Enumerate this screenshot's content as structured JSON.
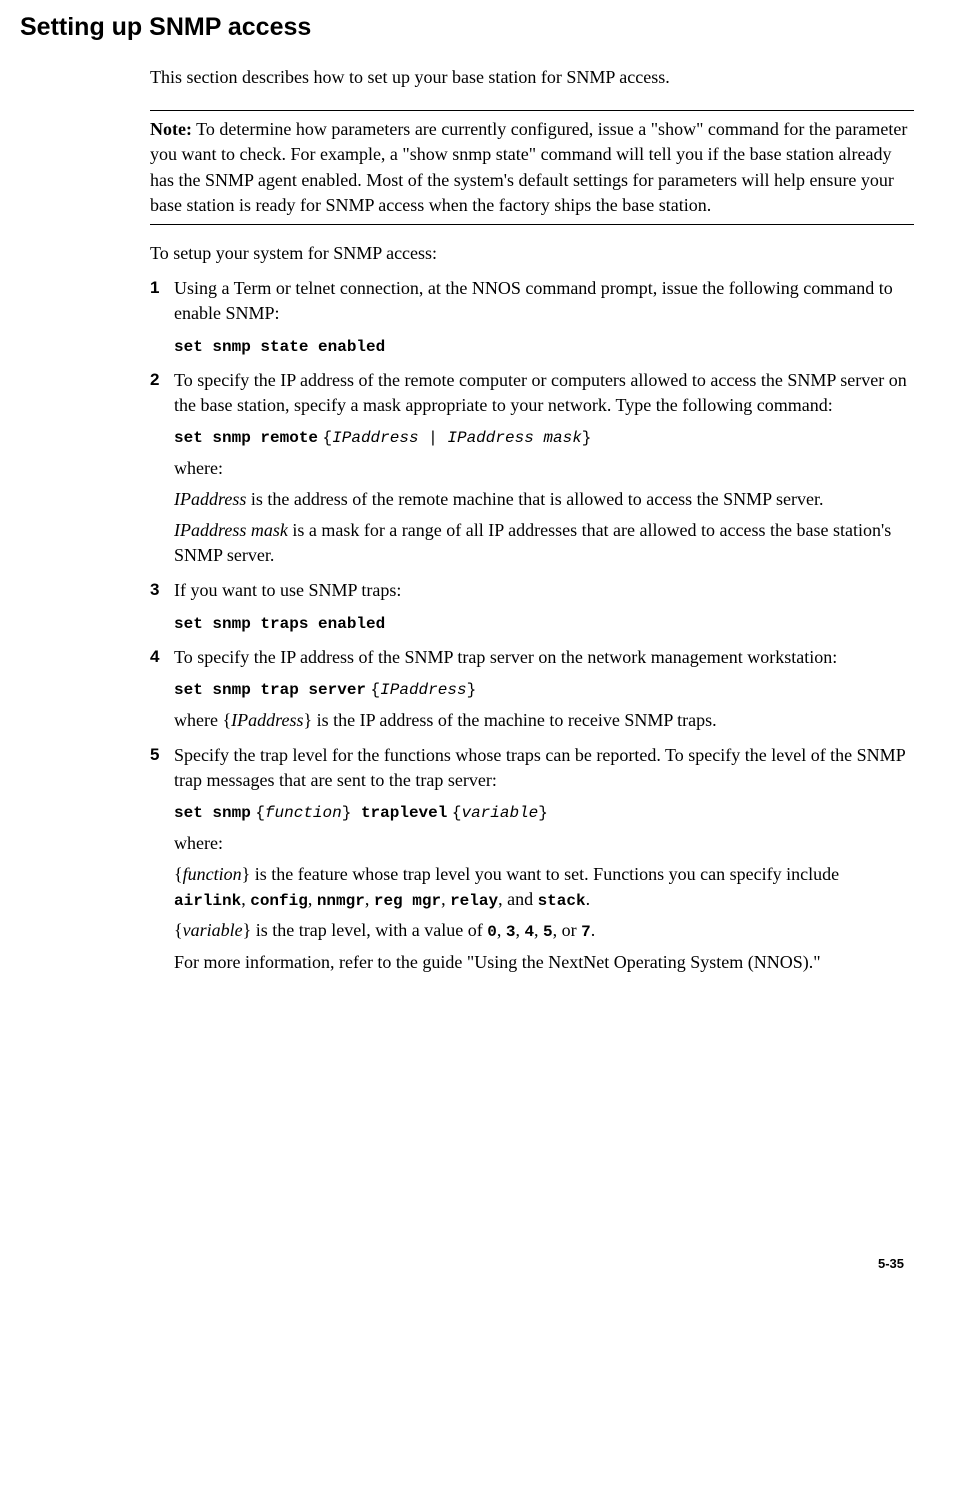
{
  "heading": "Setting up SNMP access",
  "intro": "This section describes how to set up your base station for SNMP access.",
  "note_label": "Note:",
  "note_body": " To determine how parameters are currently configured, issue a \"show\" command for the parameter you want to check. For example, a \"show snmp state\" command will tell you if the base station already has the SNMP agent enabled. Most of the system's default settings for parameters will help ensure your base station is ready for SNMP access when the factory ships the base station.",
  "setup_intro": "To setup your system for SNMP access:",
  "steps": {
    "s1": {
      "num": "1",
      "text": "Using a Term or telnet connection, at the NNOS command prompt, issue the following command to enable SNMP:",
      "cmd": "set snmp state enabled"
    },
    "s2": {
      "num": "2",
      "text": "To specify the IP address of the remote computer or computers allowed to access the SNMP server on the base station, specify a mask appropriate to your network. Type the following command:",
      "cmd_prefix": "set snmp remote",
      "cmd_arg1": "IPaddress",
      "cmd_pipe": " | ",
      "cmd_arg2": "IPaddress mask",
      "where": "where:",
      "exp1_term": "IPaddress",
      "exp1_rest": " is the address of the remote machine that is allowed to access the SNMP server.",
      "exp2_term": "IPaddress mask",
      "exp2_rest": " is a mask for a range of all IP addresses that are allowed to access the base station's SNMP server."
    },
    "s3": {
      "num": "3",
      "text": "If you want to use SNMP traps:",
      "cmd": "set snmp traps enabled"
    },
    "s4": {
      "num": "4",
      "text": "To specify the IP address of the SNMP trap server on the network management workstation:",
      "cmd_prefix": "set snmp trap server",
      "cmd_arg": "IPaddress",
      "where_pre": "where {",
      "where_term": "IPaddress",
      "where_post": "} is the IP address of the machine to receive SNMP traps."
    },
    "s5": {
      "num": "5",
      "text": "Specify the trap level for the functions whose traps can be reported. To specify the level of the SNMP trap messages that are sent to the trap server:",
      "cmd_p1": "set snmp",
      "cmd_arg1": "function",
      "cmd_p2": "traplevel",
      "cmd_arg2": "variable",
      "where": "where:",
      "func_pre": "{",
      "func_term": "function",
      "func_post": "} is the feature whose trap level you want to set. Functions you can specify include ",
      "func_v1": "airlink",
      "func_c1": ", ",
      "func_v2": "config",
      "func_c2": ", ",
      "func_v3": "nnmgr",
      "func_c3": ", ",
      "func_v4": "reg mgr",
      "func_c4": ", ",
      "func_v5": "relay",
      "func_and": ", and ",
      "func_v6": "stack",
      "func_end": ".",
      "var_pre": "{",
      "var_term": "variable",
      "var_post": "} is the trap level, with a value of ",
      "var_v1": "0",
      "var_c1": ", ",
      "var_v2": "3",
      "var_c2": ", ",
      "var_v3": "4",
      "var_c3": ", ",
      "var_v4": "5",
      "var_or": ", or ",
      "var_v5": "7",
      "var_end": ".",
      "more": "For more information, refer to the guide \"Using the NextNet Operating System (NNOS).\""
    }
  },
  "footer": "5-35"
}
